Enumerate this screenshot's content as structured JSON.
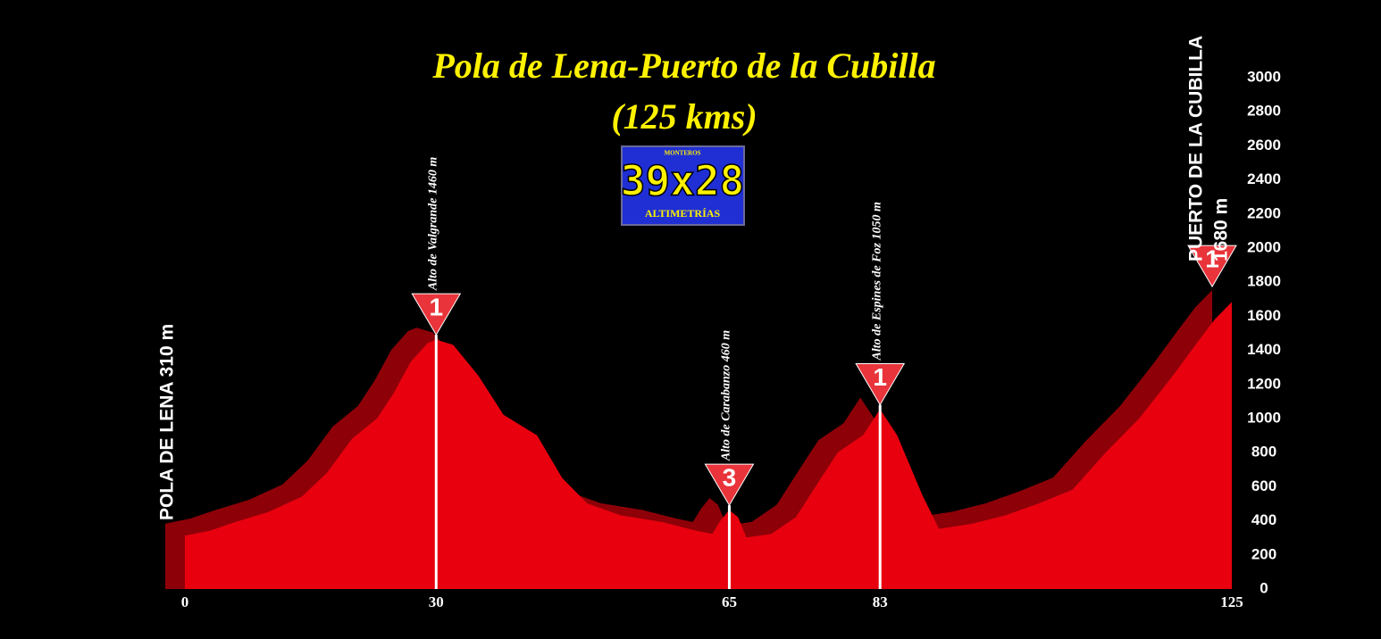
{
  "chart_data": {
    "type": "area",
    "title": "Pola de Lena-Puerto de la Cubilla",
    "subtitle": "(125 kms)",
    "logo": {
      "top": "MONTEROS",
      "main": "39x28",
      "bottom": "ALTIMETRÍAS"
    },
    "x": [
      0,
      3,
      6,
      10,
      14,
      17,
      20,
      23,
      25,
      27,
      29,
      30,
      32,
      35,
      38,
      42,
      45,
      48,
      52,
      57,
      61,
      63,
      64,
      65,
      66,
      67,
      70,
      73,
      76,
      78,
      81,
      83,
      85,
      88,
      90,
      94,
      98,
      102,
      106,
      110,
      114,
      118,
      121,
      123,
      125
    ],
    "values": [
      310,
      340,
      390,
      450,
      540,
      680,
      880,
      1000,
      1150,
      1330,
      1440,
      1460,
      1430,
      1250,
      1020,
      900,
      650,
      500,
      430,
      390,
      340,
      320,
      400,
      460,
      420,
      300,
      320,
      420,
      650,
      800,
      900,
      1050,
      900,
      550,
      350,
      380,
      430,
      500,
      580,
      800,
      1000,
      1250,
      1450,
      1580,
      1680
    ],
    "color": "#e8000f",
    "shadow_color": "#8e0008",
    "xlim": [
      0,
      125
    ],
    "xticks": [
      0,
      30,
      65,
      83,
      125
    ],
    "ylim": [
      0,
      3000
    ],
    "yticks": [
      0,
      200,
      400,
      600,
      800,
      1000,
      1200,
      1400,
      1600,
      1800,
      2000,
      2200,
      2400,
      2600,
      2800,
      3000
    ],
    "climbs": [
      {
        "name": "Alto de Valgrande 1460 m",
        "x": 30,
        "elevation": 1460,
        "category": "1"
      },
      {
        "name": "Alto de Carabanzo 460 m",
        "x": 65,
        "elevation": 460,
        "category": "3"
      },
      {
        "name": "Alto de Espines de Foz 1050 m",
        "x": 83,
        "elevation": 1050,
        "category": "1"
      }
    ],
    "start": {
      "label": "POLA DE LENA 310 m"
    },
    "finish": {
      "label_lines": [
        "PUERTO DE LA CUBILLA",
        "1680 m"
      ],
      "category": "1"
    }
  }
}
